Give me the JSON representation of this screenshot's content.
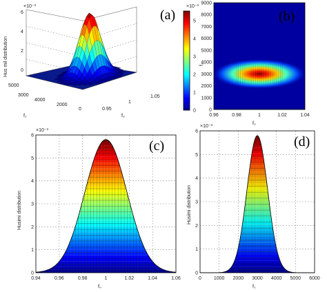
{
  "panels": {
    "a": "(a)",
    "b": "(b)",
    "c": "(c)",
    "d": "(d)"
  },
  "chart_data": [
    {
      "panel": "(a)",
      "type": "surface",
      "ylabel": "Hus mil distribution",
      "xlabel": "f₀",
      "zlabel_left": "f₁",
      "exponent": "×10⁻³",
      "z_ticks": [
        "0",
        "2",
        "4",
        "6"
      ],
      "f1_ticks": [
        "5000",
        "3000",
        "4000",
        "2000",
        "0"
      ],
      "f0_ticks": [
        "0.95",
        "1",
        "1.05"
      ],
      "peak": {
        "f0": 1.0,
        "f1": 3000,
        "z": 0.0053
      }
    },
    {
      "panel": "(b)",
      "type": "heatmap",
      "ylabel": "f₁",
      "xlabel": "f₀",
      "y_ticks": [
        "0",
        "1000",
        "2000",
        "3000",
        "4000",
        "5000",
        "6000",
        "7000",
        "8000",
        "9000"
      ],
      "x_ticks": [
        "0.96",
        "0.98",
        "1",
        "1.02",
        "1.04"
      ],
      "ylim": [
        0,
        9000
      ],
      "xlim": [
        0.96,
        1.04
      ],
      "colorbar_ticks": [
        "0",
        "1",
        "2",
        "3",
        "4",
        "5"
      ],
      "colorbar_exponent": "×10⁻³",
      "center": {
        "f0": 1.0,
        "f1": 3000
      }
    },
    {
      "panel": "(c)",
      "type": "area",
      "ylabel": "Husimi distribution",
      "xlabel": "f₀",
      "exponent": "×10⁻³",
      "y_ticks": [
        "0",
        "1",
        "2",
        "3",
        "4",
        "5",
        "6"
      ],
      "x_ticks": [
        "0.94",
        "0.96",
        "0.98",
        "1",
        "1.02",
        "1.04",
        "1.06"
      ],
      "xlim": [
        0.94,
        1.06
      ],
      "ylim": [
        0,
        6
      ],
      "peak": {
        "x": 1.0,
        "y": 5.8
      },
      "sigma": 0.018
    },
    {
      "panel": "(d)",
      "type": "area",
      "ylabel": "Husimi distribution",
      "xlabel": "f₁",
      "exponent": "×10⁻³",
      "y_ticks": [
        "0",
        "1",
        "2",
        "3",
        "4",
        "5",
        "6"
      ],
      "x_ticks": [
        "0",
        "1000",
        "2000",
        "3000",
        "4000",
        "5000",
        "6000"
      ],
      "xlim": [
        0,
        6000
      ],
      "ylim": [
        0,
        6
      ],
      "peak": {
        "x": 3000,
        "y": 5.8
      },
      "sigma": 540
    }
  ]
}
